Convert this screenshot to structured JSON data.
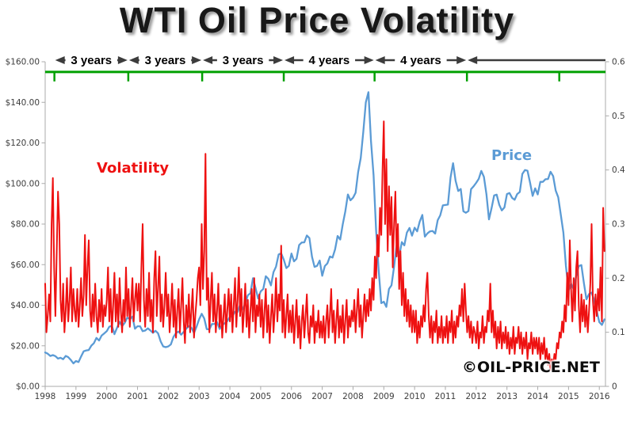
{
  "page": {
    "background": "#ffffff"
  },
  "labels": {
    "volatility": "Volatility",
    "price": "Price",
    "watermark": "©OIL-PRICE.NET"
  },
  "timeline": {
    "color": "#00a000",
    "line_value_left_axis": 155,
    "tick_years": [
      1998.3,
      2000.7,
      2003.1,
      2005.75,
      2008.7,
      2011.7,
      2014.7
    ],
    "segments": [
      {
        "from": 1998.3,
        "to": 2000.7,
        "label": "3 years"
      },
      {
        "from": 2000.7,
        "to": 2003.1,
        "label": "3 years"
      },
      {
        "from": 2003.1,
        "to": 2005.75,
        "label": "3 years"
      },
      {
        "from": 2005.75,
        "to": 2008.7,
        "label": "4 years"
      },
      {
        "from": 2008.7,
        "to": 2011.7,
        "label": "4 years"
      },
      {
        "from": 2011.7,
        "to": 2016.2,
        "label": ""
      }
    ],
    "arrow_color": "#3c3c3c"
  },
  "chart_data": {
    "type": "line",
    "title": "WTI Oil Price Volatility",
    "grid": false,
    "legend_position": "inline-labels",
    "left_axis": {
      "label": "price $",
      "min": 0,
      "max": 160,
      "ticks": [
        "$160.00",
        "$140.00",
        "$120.00",
        "$100.00",
        "$80.00",
        "$60.00",
        "$40.00",
        "$20.00",
        "$0.00"
      ]
    },
    "right_axis": {
      "label": "volatility",
      "min": 0,
      "max": 0.6,
      "ticks": [
        "0.6",
        "0.5",
        "0.4",
        "0.3",
        "0.2",
        "0.1",
        "0"
      ]
    },
    "x_axis": {
      "min": 1998,
      "max": 2016.2,
      "ticks": [
        "1998",
        "1999",
        "2000",
        "2001",
        "2002",
        "2003",
        "2004",
        "2005",
        "2006",
        "2007",
        "2008",
        "2009",
        "2010",
        "2011",
        "2012",
        "2013",
        "2014",
        "2015",
        "2016"
      ]
    },
    "series": [
      {
        "name": "Price",
        "color": "#5b9bd5",
        "axis": "left",
        "start_year": 1998,
        "points_per_year": 12,
        "values": [
          16.7,
          16.1,
          15.0,
          15.4,
          14.9,
          13.7,
          14.1,
          13.4,
          15.0,
          14.4,
          13.0,
          11.3,
          12.5,
          12.0,
          14.7,
          17.3,
          17.7,
          17.9,
          20.1,
          21.3,
          23.9,
          22.6,
          25.0,
          26.1,
          27.2,
          29.4,
          29.9,
          25.7,
          28.8,
          31.8,
          29.7,
          31.3,
          33.9,
          33.1,
          34.4,
          28.4,
          29.6,
          29.6,
          27.2,
          27.5,
          28.6,
          27.6,
          26.4,
          27.4,
          26.2,
          22.2,
          19.7,
          19.3,
          19.7,
          20.7,
          24.4,
          26.3,
          27.0,
          25.5,
          26.9,
          28.4,
          29.7,
          28.9,
          26.3,
          29.4,
          33.0,
          35.8,
          33.5,
          28.2,
          28.1,
          30.7,
          30.8,
          31.6,
          28.3,
          30.3,
          31.1,
          32.1,
          34.3,
          34.7,
          36.8,
          36.7,
          40.3,
          38.0,
          40.8,
          44.9,
          45.9,
          53.3,
          48.5,
          43.3,
          46.8,
          48.0,
          54.3,
          53.0,
          49.8,
          56.3,
          59.0,
          65.0,
          65.6,
          62.4,
          58.3,
          59.4,
          65.5,
          61.6,
          62.9,
          69.7,
          70.9,
          71.0,
          74.4,
          73.1,
          63.9,
          58.9,
          59.4,
          62.0,
          54.5,
          59.3,
          60.6,
          64.0,
          63.5,
          67.5,
          74.1,
          72.4,
          79.9,
          86.2,
          94.6,
          91.7,
          93.0,
          95.4,
          105.6,
          112.6,
          125.4,
          140.0,
          145.0,
          121.0,
          104.0,
          76.7,
          57.3,
          41.0,
          41.7,
          39.2,
          48.0,
          49.8,
          59.2,
          69.7,
          64.1,
          71.1,
          69.5,
          75.8,
          78.1,
          74.3,
          78.2,
          76.4,
          81.2,
          84.5,
          73.8,
          75.4,
          76.4,
          76.6,
          75.3,
          81.9,
          84.3,
          89.2,
          89.4,
          89.6,
          102.9,
          110.0,
          101.3,
          96.3,
          97.3,
          86.3,
          85.6,
          86.4,
          97.2,
          98.6,
          100.3,
          102.3,
          106.2,
          103.3,
          94.7,
          82.3,
          87.9,
          94.1,
          94.5,
          89.5,
          86.7,
          88.2,
          94.8,
          95.3,
          92.9,
          92.0,
          94.8,
          95.8,
          104.7,
          106.6,
          106.3,
          100.5,
          93.9,
          97.6,
          94.6,
          100.8,
          100.8,
          102.1,
          102.2,
          105.8,
          103.6,
          96.5,
          93.2,
          84.4,
          75.8,
          59.3,
          47.2,
          50.6,
          47.8,
          54.5,
          59.3,
          59.8,
          50.9,
          42.9,
          45.5,
          46.2,
          42.4,
          37.2,
          31.7,
          30.3,
          33.0
        ]
      },
      {
        "name": "Volatility",
        "color": "#ee1111",
        "axis": "right",
        "start_year": 1998,
        "points_per_year": 24,
        "values": [
          0.19,
          0.1,
          0.13,
          0.17,
          0.12,
          0.3,
          0.385,
          0.22,
          0.13,
          0.25,
          0.36,
          0.3,
          0.16,
          0.12,
          0.19,
          0.1,
          0.14,
          0.2,
          0.12,
          0.16,
          0.22,
          0.12,
          0.18,
          0.14,
          0.12,
          0.18,
          0.11,
          0.15,
          0.2,
          0.13,
          0.17,
          0.28,
          0.15,
          0.22,
          0.27,
          0.14,
          0.11,
          0.17,
          0.12,
          0.19,
          0.13,
          0.1,
          0.16,
          0.12,
          0.18,
          0.11,
          0.15,
          0.13,
          0.16,
          0.22,
          0.12,
          0.18,
          0.1,
          0.15,
          0.21,
          0.12,
          0.17,
          0.11,
          0.2,
          0.14,
          0.1,
          0.16,
          0.12,
          0.22,
          0.13,
          0.18,
          0.11,
          0.15,
          0.2,
          0.12,
          0.16,
          0.19,
          0.14,
          0.19,
          0.12,
          0.22,
          0.3,
          0.16,
          0.11,
          0.18,
          0.13,
          0.21,
          0.12,
          0.16,
          0.1,
          0.2,
          0.25,
          0.13,
          0.18,
          0.24,
          0.12,
          0.17,
          0.11,
          0.15,
          0.21,
          0.13,
          0.17,
          0.1,
          0.14,
          0.19,
          0.11,
          0.16,
          0.09,
          0.14,
          0.18,
          0.1,
          0.15,
          0.2,
          0.12,
          0.08,
          0.15,
          0.11,
          0.17,
          0.1,
          0.14,
          0.18,
          0.09,
          0.13,
          0.16,
          0.2,
          0.22,
          0.15,
          0.3,
          0.18,
          0.25,
          0.43,
          0.16,
          0.2,
          0.1,
          0.16,
          0.21,
          0.12,
          0.17,
          0.1,
          0.14,
          0.19,
          0.11,
          0.15,
          0.09,
          0.13,
          0.17,
          0.1,
          0.14,
          0.18,
          0.12,
          0.17,
          0.1,
          0.15,
          0.2,
          0.11,
          0.16,
          0.22,
          0.13,
          0.18,
          0.1,
          0.14,
          0.19,
          0.11,
          0.16,
          0.09,
          0.14,
          0.18,
          0.12,
          0.2,
          0.1,
          0.15,
          0.13,
          0.17,
          0.11,
          0.16,
          0.09,
          0.14,
          0.18,
          0.1,
          0.15,
          0.08,
          0.13,
          0.17,
          0.1,
          0.14,
          0.2,
          0.12,
          0.17,
          0.14,
          0.26,
          0.1,
          0.16,
          0.09,
          0.13,
          0.17,
          0.1,
          0.14,
          0.1,
          0.15,
          0.08,
          0.12,
          0.16,
          0.09,
          0.13,
          0.07,
          0.12,
          0.15,
          0.09,
          0.13,
          0.17,
          0.1,
          0.08,
          0.13,
          0.11,
          0.15,
          0.08,
          0.12,
          0.1,
          0.14,
          0.09,
          0.12,
          0.09,
          0.13,
          0.08,
          0.12,
          0.15,
          0.09,
          0.13,
          0.18,
          0.1,
          0.14,
          0.08,
          0.12,
          0.16,
          0.09,
          0.13,
          0.1,
          0.15,
          0.08,
          0.12,
          0.16,
          0.09,
          0.13,
          0.11,
          0.14,
          0.12,
          0.16,
          0.1,
          0.14,
          0.18,
          0.11,
          0.15,
          0.09,
          0.13,
          0.17,
          0.12,
          0.16,
          0.13,
          0.18,
          0.14,
          0.2,
          0.16,
          0.24,
          0.2,
          0.28,
          0.24,
          0.33,
          0.28,
          0.4,
          0.49,
          0.3,
          0.42,
          0.25,
          0.37,
          0.28,
          0.35,
          0.22,
          0.3,
          0.36,
          0.24,
          0.3,
          0.18,
          0.25,
          0.15,
          0.21,
          0.13,
          0.18,
          0.12,
          0.16,
          0.11,
          0.15,
          0.1,
          0.14,
          0.1,
          0.14,
          0.08,
          0.12,
          0.09,
          0.13,
          0.11,
          0.15,
          0.12,
          0.18,
          0.21,
          0.13,
          0.09,
          0.13,
          0.08,
          0.12,
          0.1,
          0.14,
          0.08,
          0.11,
          0.09,
          0.13,
          0.08,
          0.11,
          0.09,
          0.13,
          0.08,
          0.12,
          0.1,
          0.14,
          0.08,
          0.12,
          0.09,
          0.13,
          0.11,
          0.15,
          0.13,
          0.18,
          0.12,
          0.19,
          0.14,
          0.1,
          0.13,
          0.09,
          0.12,
          0.08,
          0.11,
          0.1,
          0.08,
          0.12,
          0.07,
          0.1,
          0.09,
          0.13,
          0.08,
          0.11,
          0.1,
          0.14,
          0.12,
          0.19,
          0.1,
          0.14,
          0.09,
          0.12,
          0.07,
          0.11,
          0.08,
          0.12,
          0.07,
          0.1,
          0.08,
          0.11,
          0.07,
          0.1,
          0.06,
          0.09,
          0.07,
          0.11,
          0.06,
          0.09,
          0.08,
          0.11,
          0.07,
          0.1,
          0.06,
          0.09,
          0.07,
          0.1,
          0.05,
          0.08,
          0.07,
          0.1,
          0.06,
          0.09,
          0.07,
          0.09,
          0.06,
          0.09,
          0.05,
          0.08,
          0.06,
          0.09,
          0.05,
          0.07,
          0.04,
          0.06,
          0.03,
          0.05,
          0.04,
          0.06,
          0.05,
          0.08,
          0.07,
          0.1,
          0.09,
          0.12,
          0.1,
          0.15,
          0.12,
          0.21,
          0.15,
          0.27,
          0.18,
          0.12,
          0.2,
          0.14,
          0.22,
          0.25,
          0.15,
          0.1,
          0.17,
          0.12,
          0.16,
          0.11,
          0.15,
          0.1,
          0.14,
          0.19,
          0.3,
          0.16,
          0.12,
          0.17,
          0.13,
          0.18,
          0.14,
          0.22,
          0.12,
          0.33,
          0.25
        ]
      }
    ]
  }
}
